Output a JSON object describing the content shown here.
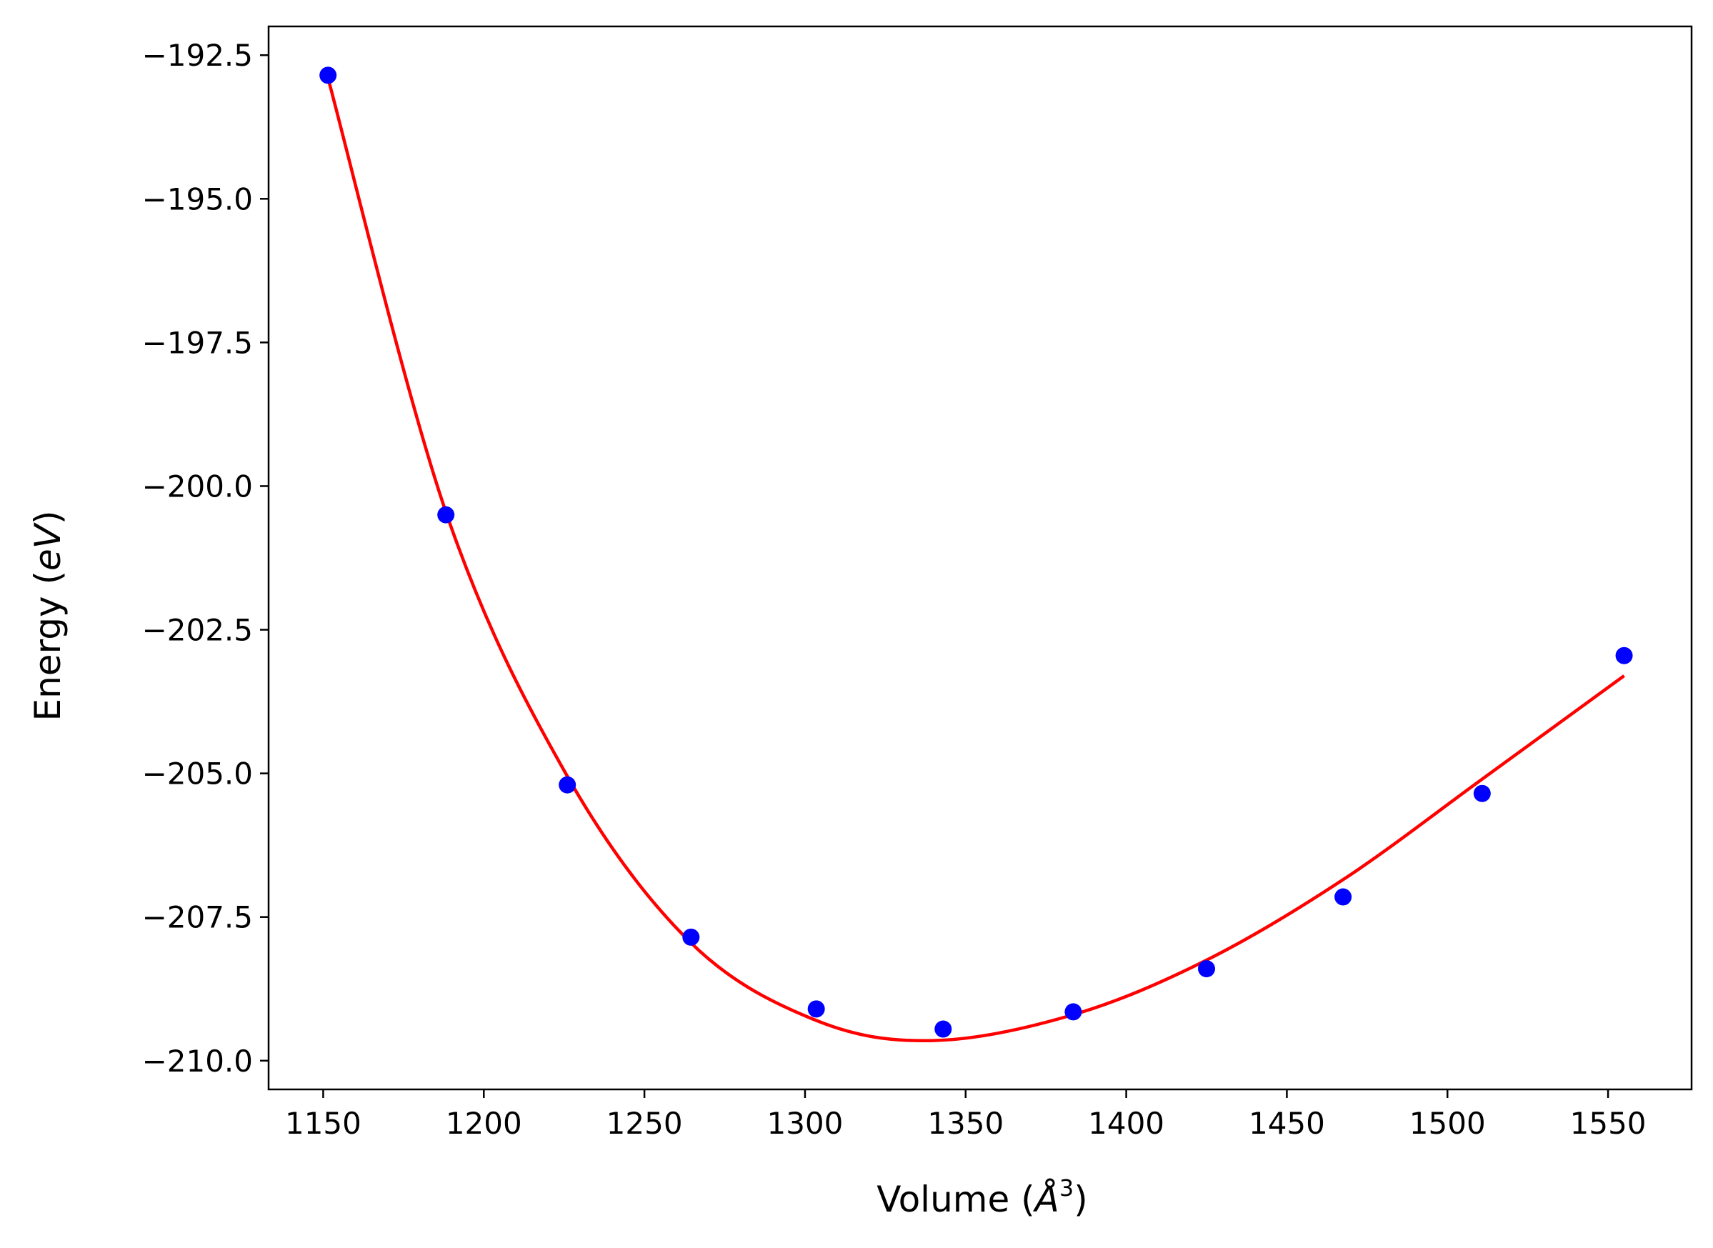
{
  "chart_data": {
    "type": "scatter",
    "xlabel_prefix": "Volume (",
    "xlabel_unit": "Å",
    "xlabel_exp": "3",
    "xlabel_suffix": ")",
    "ylabel_prefix": "Energy (",
    "ylabel_unit": "eV",
    "ylabel_suffix": ")",
    "xlim": [
      1133,
      1576
    ],
    "ylim": [
      -210.5,
      -192.0
    ],
    "x_ticks": [
      1150,
      1200,
      1250,
      1300,
      1350,
      1400,
      1450,
      1500,
      1550
    ],
    "x_tick_labels": [
      "1150",
      "1200",
      "1250",
      "1300",
      "1350",
      "1400",
      "1450",
      "1500",
      "1550"
    ],
    "y_ticks": [
      -192.5,
      -195.0,
      -197.5,
      -200.0,
      -202.5,
      -205.0,
      -207.5,
      -210.0
    ],
    "y_tick_labels": [
      "−192.5",
      "−195.0",
      "−197.5",
      "−200.0",
      "−202.5",
      "−205.0",
      "−207.5",
      "−210.0"
    ],
    "grid": false,
    "series": [
      {
        "kind": "points",
        "color": "#0000ff",
        "x": [
          1151.5,
          1188.2,
          1226.0,
          1264.5,
          1303.5,
          1343.0,
          1383.5,
          1425.0,
          1467.5,
          1510.8,
          1555.0
        ],
        "y": [
          -192.85,
          -200.5,
          -205.2,
          -207.85,
          -209.1,
          -209.45,
          -209.15,
          -208.4,
          -207.15,
          -205.35,
          -202.95
        ]
      },
      {
        "kind": "fit",
        "color": "#ff0000",
        "x": [
          1151.5,
          1188.2,
          1226.0,
          1264.5,
          1303.5,
          1340.0,
          1383.5,
          1425.0,
          1467.5,
          1510.8,
          1555.0
        ],
        "y": [
          -192.9,
          -200.45,
          -205.05,
          -207.95,
          -209.3,
          -209.65,
          -209.2,
          -208.25,
          -206.85,
          -205.1,
          -203.3
        ]
      }
    ]
  }
}
